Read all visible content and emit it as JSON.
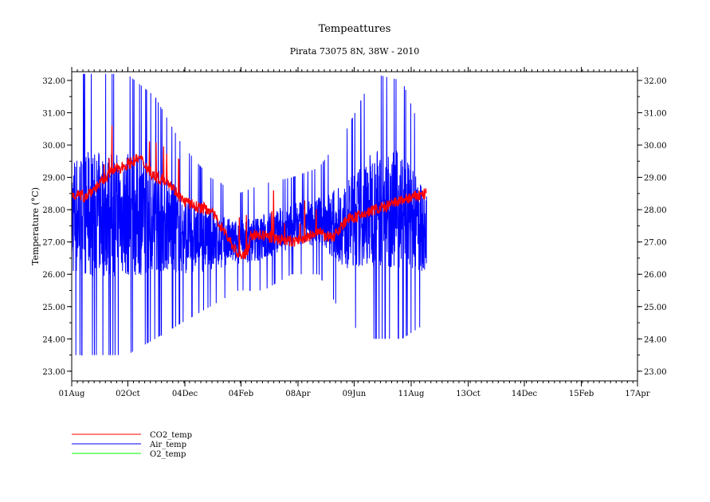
{
  "chart_data": {
    "type": "line",
    "title": "Tempeattures",
    "subtitle": "Pirata 73075 8N, 38W - 2010",
    "ylabel": "Temperature (°C)",
    "xlabel": "",
    "xlim": [
      "2010-08-01",
      "2012-04-17"
    ],
    "ylim": [
      22.7,
      32.27
    ],
    "x_tick_labels": [
      "01Aug",
      "02Oct",
      "04Dec",
      "04Feb",
      "08Apr",
      "09Jun",
      "11Aug",
      "13Oct",
      "14Dec",
      "15Feb",
      "17Apr"
    ],
    "x_tick_dates": [
      "2010-08-01",
      "2010-10-02",
      "2010-12-04",
      "2011-02-04",
      "2011-04-08",
      "2011-06-09",
      "2011-08-11",
      "2011-10-13",
      "2011-12-14",
      "2012-02-15",
      "2012-04-17"
    ],
    "y_ticks": [
      "23.00",
      "24.00",
      "25.00",
      "26.00",
      "27.00",
      "28.00",
      "29.00",
      "30.00",
      "31.00",
      "32.00"
    ],
    "grid": false,
    "legend_placement": "bottom-left",
    "series": [
      {
        "name": "CO2_temp",
        "color": "#ff0000",
        "x": [
          "2010-08-01",
          "2010-08-15",
          "2010-09-01",
          "2010-09-15",
          "2010-10-01",
          "2010-10-15",
          "2010-11-01",
          "2010-11-15",
          "2010-12-01",
          "2010-12-15",
          "2011-01-01",
          "2011-01-15",
          "2011-02-01",
          "2011-02-10",
          "2011-02-15",
          "2011-03-01",
          "2011-03-15",
          "2011-04-01",
          "2011-04-15",
          "2011-05-01",
          "2011-05-15",
          "2011-06-01",
          "2011-06-15",
          "2011-07-01",
          "2011-07-15",
          "2011-08-01",
          "2011-08-15",
          "2011-08-28"
        ],
        "y": [
          28.5,
          28.4,
          28.8,
          29.2,
          29.4,
          29.6,
          29.0,
          28.9,
          28.3,
          28.1,
          28.0,
          27.4,
          26.6,
          26.6,
          27.2,
          27.2,
          27.1,
          27.0,
          27.1,
          27.3,
          27.1,
          27.7,
          27.8,
          28.0,
          28.1,
          28.3,
          28.4,
          28.5
        ]
      },
      {
        "name": "Air_temp",
        "color": "#0000ff",
        "x": [
          "2010-08-01",
          "2010-09-01",
          "2010-10-01",
          "2010-11-01",
          "2010-12-01",
          "2011-01-01",
          "2011-02-01",
          "2011-03-01",
          "2011-04-01",
          "2011-05-01",
          "2011-06-01",
          "2011-07-01",
          "2011-08-01",
          "2011-08-28"
        ],
        "y_min": [
          23.5,
          23.5,
          23.5,
          24.0,
          24.5,
          25.0,
          25.5,
          25.5,
          26.0,
          26.0,
          24.5,
          24.0,
          24.0,
          24.5
        ],
        "y_max": [
          32.2,
          32.2,
          32.2,
          31.5,
          30.0,
          29.0,
          28.5,
          28.8,
          29.0,
          29.3,
          30.5,
          32.2,
          32.0,
          30.0
        ]
      },
      {
        "name": "O2_temp",
        "color": "#00ff00",
        "x": [],
        "y": []
      }
    ]
  }
}
